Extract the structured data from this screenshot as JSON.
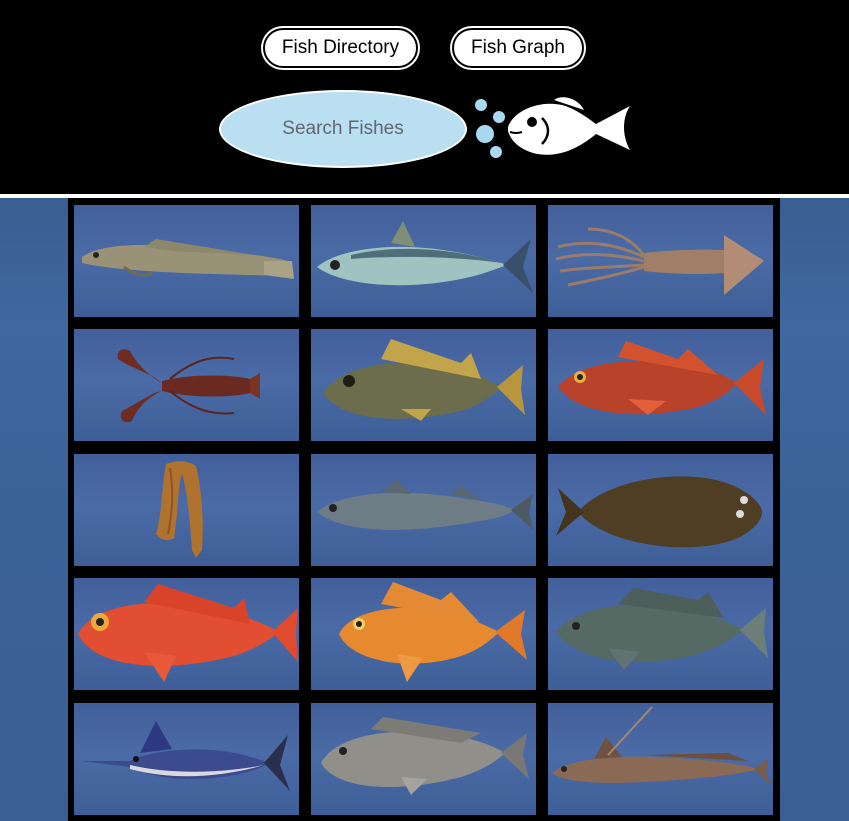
{
  "nav": {
    "directory_label": "Fish Directory",
    "graph_label": "Fish Graph"
  },
  "search": {
    "placeholder": "Search Fishes"
  },
  "colors": {
    "header_bg": "#000000",
    "search_fill": "#b9dff0",
    "bubble": "#a9d9f0",
    "ocean": "#3f67a0"
  },
  "logo": {
    "icon": "fish-with-bubbles-icon"
  },
  "tiles": [
    {
      "name": "tile-lingcod",
      "icon": "lingcod-icon"
    },
    {
      "name": "tile-mackerel",
      "icon": "mackerel-icon"
    },
    {
      "name": "tile-squid",
      "icon": "squid-icon"
    },
    {
      "name": "tile-lobster",
      "icon": "lobster-icon"
    },
    {
      "name": "tile-yellowtail-rockfish",
      "icon": "yellowtail-rockfish-icon"
    },
    {
      "name": "tile-vermilion-rockfish",
      "icon": "vermilion-rockfish-icon"
    },
    {
      "name": "tile-sea-cucumber",
      "icon": "sea-cucumber-icon"
    },
    {
      "name": "tile-sablefish",
      "icon": "sablefish-icon"
    },
    {
      "name": "tile-halibut",
      "icon": "halibut-icon"
    },
    {
      "name": "tile-red-rockfish",
      "icon": "red-rockfish-icon"
    },
    {
      "name": "tile-orange-rockfish",
      "icon": "orange-rockfish-icon"
    },
    {
      "name": "tile-grouper",
      "icon": "grouper-icon"
    },
    {
      "name": "tile-marlin",
      "icon": "marlin-icon"
    },
    {
      "name": "tile-tilefish",
      "icon": "tilefish-icon"
    },
    {
      "name": "tile-dragonet",
      "icon": "dragonet-icon"
    }
  ]
}
